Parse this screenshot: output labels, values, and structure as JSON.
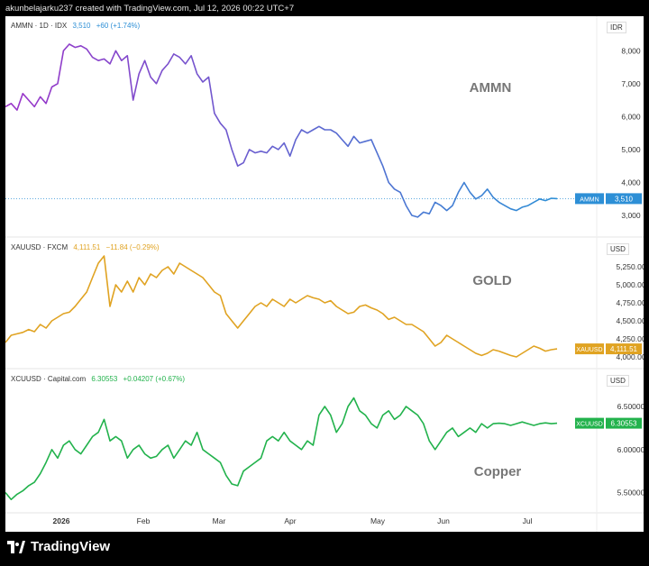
{
  "credit": "akunbelajarku237 created with TradingView.com, Jul 12, 2026 00:22 UTC+7",
  "brand": "TradingView",
  "x_labels": [
    "2026",
    "Feb",
    "Mar",
    "Apr",
    "May",
    "Jun",
    "Jul"
  ],
  "chart_data": [
    {
      "type": "line",
      "symbol": "AMMN · 1D · IDX",
      "last": "3,510",
      "change": "+60 (+1.74%)",
      "label": "AMMN",
      "unit": "IDR",
      "ticks": [
        "8,000",
        "7,000",
        "6,000",
        "5,000",
        "4,000",
        "3,000"
      ],
      "ylim": [
        2700,
        8500
      ],
      "tag": "AMMN",
      "tag_value": "3,510",
      "color": "#2d8fd6",
      "x": [
        0,
        2,
        4,
        6,
        8,
        10,
        12,
        14,
        16,
        18,
        20,
        22,
        24,
        26,
        28,
        30,
        32,
        34,
        36,
        38,
        40,
        42,
        44,
        46,
        48,
        50,
        52,
        54,
        56,
        58,
        60,
        62,
        64,
        66,
        68,
        70,
        72,
        74,
        76,
        78,
        80,
        82,
        84,
        86,
        88,
        90,
        92,
        94,
        96,
        98,
        100,
        102,
        104,
        106,
        108,
        110,
        112,
        114,
        116,
        118,
        120,
        122,
        124,
        126,
        128,
        130,
        132,
        134,
        136,
        138,
        140,
        142,
        144,
        146,
        148,
        150,
        152,
        154,
        156,
        158,
        160,
        162,
        164,
        166,
        168,
        170,
        172,
        174,
        176,
        178,
        180,
        182,
        184,
        186,
        188,
        190
      ],
      "values": [
        6300,
        6400,
        6200,
        6700,
        6500,
        6300,
        6600,
        6400,
        6900,
        7000,
        8000,
        8200,
        8100,
        8150,
        8050,
        7800,
        7700,
        7750,
        7600,
        8000,
        7700,
        7850,
        6500,
        7300,
        7700,
        7200,
        7000,
        7400,
        7600,
        7900,
        7800,
        7600,
        7850,
        7300,
        7050,
        7200,
        6100,
        5800,
        5600,
        5000,
        4500,
        4600,
        5000,
        4900,
        4950,
        4900,
        5100,
        5000,
        5200,
        4800,
        5300,
        5600,
        5500,
        5600,
        5700,
        5600,
        5600,
        5500,
        5300,
        5100,
        5400,
        5200,
        5250,
        5300,
        4900,
        4500,
        4000,
        3800,
        3700,
        3300,
        3000,
        2950,
        3100,
        3050,
        3400,
        3300,
        3150,
        3300,
        3700,
        4000,
        3700,
        3500,
        3600,
        3800,
        3550,
        3400,
        3300,
        3200,
        3150,
        3250,
        3300,
        3400,
        3500,
        3450,
        3520,
        3510
      ]
    },
    {
      "type": "line",
      "symbol": "XAUUSD · FXCM",
      "last": "4,111.51",
      "change": "−11.84 (−0.29%)",
      "label": "GOLD",
      "unit": "USD",
      "ticks": [
        "5,250.00",
        "5,000.00",
        "4,750.00",
        "4,500.00",
        "4,250.00",
        "4,000.00"
      ],
      "ylim": [
        3950,
        5400
      ],
      "tag": "XAUUSD",
      "tag_value": "4,111.51",
      "color": "#e0a322",
      "x": [
        0,
        2,
        4,
        6,
        8,
        10,
        12,
        14,
        16,
        18,
        20,
        22,
        24,
        26,
        28,
        30,
        32,
        34,
        36,
        38,
        40,
        42,
        44,
        46,
        48,
        50,
        52,
        54,
        56,
        58,
        60,
        62,
        64,
        66,
        68,
        70,
        72,
        74,
        76,
        78,
        80,
        82,
        84,
        86,
        88,
        90,
        92,
        94,
        96,
        98,
        100,
        102,
        104,
        106,
        108,
        110,
        112,
        114,
        116,
        118,
        120,
        122,
        124,
        126,
        128,
        130,
        132,
        134,
        136,
        138,
        140,
        142,
        144,
        146,
        148,
        150,
        152,
        154,
        156,
        158,
        160,
        162,
        164,
        166,
        168,
        170,
        172,
        174,
        176,
        178,
        180,
        182,
        184,
        186,
        188,
        190
      ],
      "values": [
        4200,
        4300,
        4320,
        4340,
        4380,
        4350,
        4450,
        4400,
        4500,
        4550,
        4600,
        4620,
        4700,
        4800,
        4900,
        5100,
        5300,
        5400,
        4700,
        5000,
        4900,
        5050,
        4900,
        5100,
        5000,
        5150,
        5100,
        5200,
        5250,
        5150,
        5300,
        5250,
        5200,
        5150,
        5100,
        5000,
        4900,
        4850,
        4600,
        4500,
        4400,
        4500,
        4600,
        4700,
        4750,
        4700,
        4800,
        4750,
        4700,
        4800,
        4750,
        4800,
        4850,
        4820,
        4800,
        4750,
        4780,
        4700,
        4650,
        4600,
        4620,
        4700,
        4720,
        4680,
        4650,
        4600,
        4520,
        4550,
        4500,
        4450,
        4450,
        4400,
        4350,
        4250,
        4150,
        4200,
        4300,
        4250,
        4200,
        4150,
        4100,
        4050,
        4020,
        4050,
        4100,
        4080,
        4050,
        4020,
        4000,
        4050,
        4100,
        4150,
        4120,
        4080,
        4100,
        4111.51
      ]
    },
    {
      "type": "line",
      "symbol": "XCUUSD · Capital.com",
      "last": "6.30553",
      "change": "+0.04207 (+0.67%)",
      "label": "Copper",
      "unit": "USD",
      "ticks": [
        "6.50000",
        "6.00000",
        "5.50000"
      ],
      "ylim": [
        5.38,
        6.72
      ],
      "tag": "XCUUSD",
      "tag_value": "6.30553",
      "color": "#22b24c",
      "x": [
        0,
        2,
        4,
        6,
        8,
        10,
        12,
        14,
        16,
        18,
        20,
        22,
        24,
        26,
        28,
        30,
        32,
        34,
        36,
        38,
        40,
        42,
        44,
        46,
        48,
        50,
        52,
        54,
        56,
        58,
        60,
        62,
        64,
        66,
        68,
        70,
        72,
        74,
        76,
        78,
        80,
        82,
        84,
        86,
        88,
        90,
        92,
        94,
        96,
        98,
        100,
        102,
        104,
        106,
        108,
        110,
        112,
        114,
        116,
        118,
        120,
        122,
        124,
        126,
        128,
        130,
        132,
        134,
        136,
        138,
        140,
        142,
        144,
        146,
        148,
        150,
        152,
        154,
        156,
        158,
        160,
        162,
        164,
        166,
        168,
        170,
        172,
        174,
        176,
        178,
        180,
        182,
        184,
        186,
        188,
        190
      ],
      "values": [
        5.5,
        5.42,
        5.48,
        5.52,
        5.58,
        5.62,
        5.72,
        5.85,
        6.0,
        5.9,
        6.05,
        6.1,
        6.0,
        5.95,
        6.05,
        6.15,
        6.2,
        6.35,
        6.1,
        6.15,
        6.1,
        5.9,
        6.0,
        6.05,
        5.95,
        5.9,
        5.92,
        6.0,
        6.05,
        5.9,
        6.0,
        6.1,
        6.05,
        6.2,
        6.0,
        5.95,
        5.9,
        5.85,
        5.7,
        5.6,
        5.58,
        5.75,
        5.8,
        5.85,
        5.9,
        6.1,
        6.15,
        6.1,
        6.2,
        6.1,
        6.05,
        6.0,
        6.1,
        6.05,
        6.4,
        6.5,
        6.4,
        6.2,
        6.3,
        6.5,
        6.6,
        6.45,
        6.4,
        6.3,
        6.25,
        6.4,
        6.45,
        6.35,
        6.4,
        6.5,
        6.45,
        6.4,
        6.3,
        6.1,
        6.0,
        6.1,
        6.2,
        6.25,
        6.15,
        6.2,
        6.25,
        6.2,
        6.3,
        6.25,
        6.3,
        6.30553,
        6.3,
        6.28,
        6.3,
        6.32,
        6.3,
        6.28,
        6.3,
        6.31,
        6.3,
        6.30553
      ]
    }
  ]
}
